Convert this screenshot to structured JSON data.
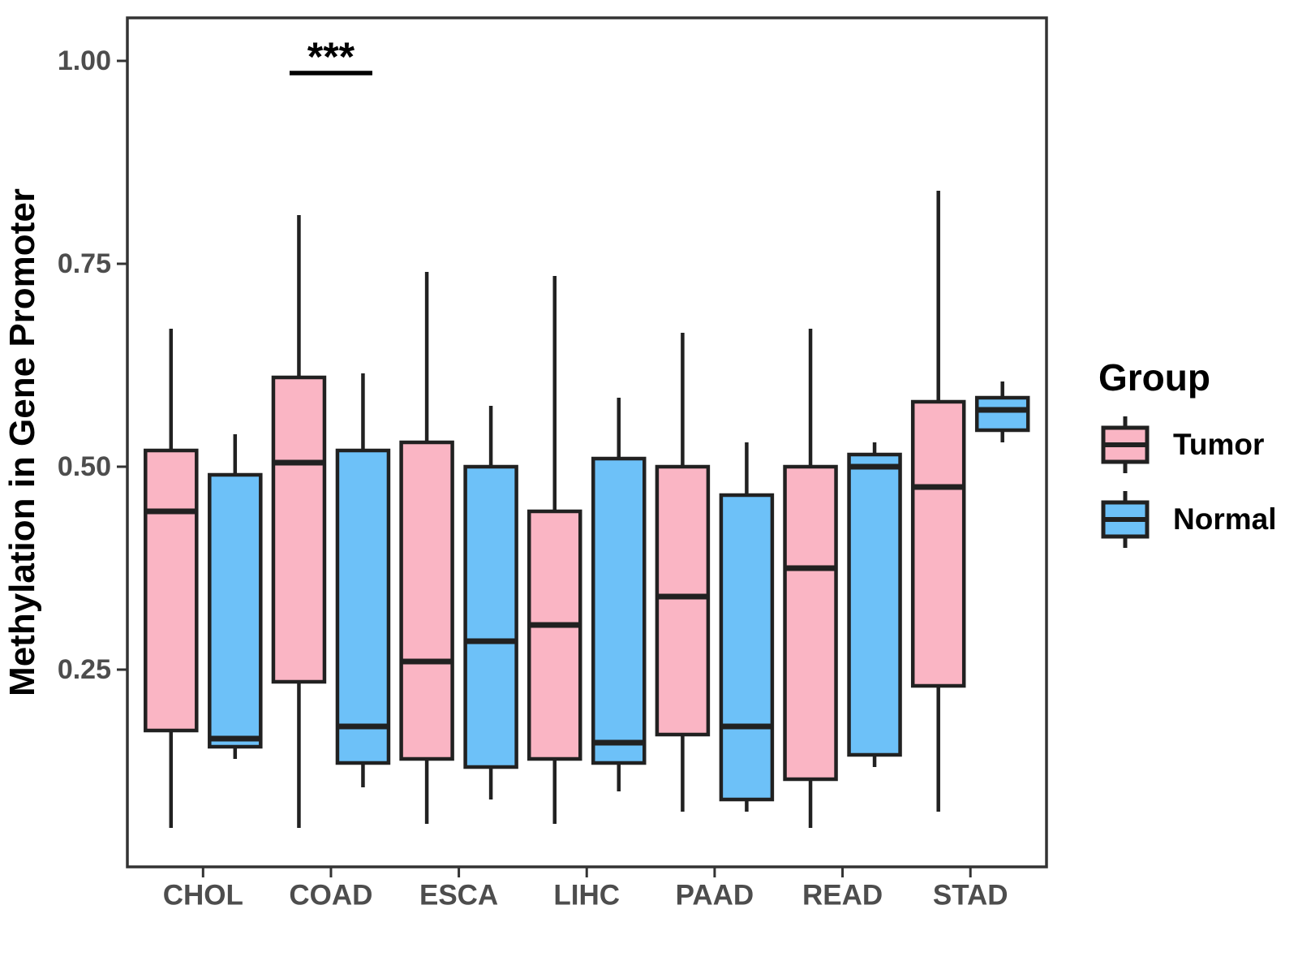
{
  "chart_data": {
    "type": "boxplot",
    "title": "",
    "xlabel": "",
    "ylabel": "Methylation in Gene Promoter",
    "categories": [
      "CHOL",
      "COAD",
      "ESCA",
      "LIHC",
      "PAAD",
      "READ",
      "STAD"
    ],
    "yticks": [
      1.0,
      0.75,
      0.5,
      0.25
    ],
    "ytick_labels": [
      "1.00",
      "0.75",
      "0.50",
      "0.25"
    ],
    "ylim": [
      0.0,
      1.05
    ],
    "grid": false,
    "legend": {
      "title": "Group",
      "position": "right",
      "entries": [
        {
          "label": "Tumor",
          "color": "#FAB5C4"
        },
        {
          "label": "Normal",
          "color": "#6DC1F8"
        }
      ]
    },
    "series": [
      {
        "name": "Tumor",
        "color": "#FAB5C4",
        "boxes": [
          {
            "category": "CHOL",
            "min": 0.055,
            "q1": 0.175,
            "median": 0.445,
            "q3": 0.52,
            "max": 0.67
          },
          {
            "category": "COAD",
            "min": 0.055,
            "q1": 0.235,
            "median": 0.505,
            "q3": 0.61,
            "max": 0.81
          },
          {
            "category": "ESCA",
            "min": 0.06,
            "q1": 0.14,
            "median": 0.26,
            "q3": 0.53,
            "max": 0.74
          },
          {
            "category": "LIHC",
            "min": 0.06,
            "q1": 0.14,
            "median": 0.305,
            "q3": 0.445,
            "max": 0.735
          },
          {
            "category": "PAAD",
            "min": 0.075,
            "q1": 0.17,
            "median": 0.34,
            "q3": 0.5,
            "max": 0.665
          },
          {
            "category": "READ",
            "min": 0.055,
            "q1": 0.115,
            "median": 0.375,
            "q3": 0.5,
            "max": 0.67
          },
          {
            "category": "STAD",
            "min": 0.075,
            "q1": 0.23,
            "median": 0.475,
            "q3": 0.58,
            "max": 0.84
          }
        ]
      },
      {
        "name": "Normal",
        "color": "#6DC1F8",
        "boxes": [
          {
            "category": "CHOL",
            "min": 0.14,
            "q1": 0.155,
            "median": 0.165,
            "q3": 0.49,
            "max": 0.54
          },
          {
            "category": "COAD",
            "min": 0.105,
            "q1": 0.135,
            "median": 0.18,
            "q3": 0.52,
            "max": 0.615
          },
          {
            "category": "ESCA",
            "min": 0.09,
            "q1": 0.13,
            "median": 0.285,
            "q3": 0.5,
            "max": 0.575
          },
          {
            "category": "LIHC",
            "min": 0.1,
            "q1": 0.135,
            "median": 0.16,
            "q3": 0.51,
            "max": 0.585
          },
          {
            "category": "PAAD",
            "min": 0.075,
            "q1": 0.09,
            "median": 0.18,
            "q3": 0.465,
            "max": 0.53
          },
          {
            "category": "READ",
            "min": 0.13,
            "q1": 0.145,
            "median": 0.5,
            "q3": 0.515,
            "max": 0.53
          },
          {
            "category": "STAD",
            "min": 0.53,
            "q1": 0.545,
            "median": 0.57,
            "q3": 0.585,
            "max": 0.605
          }
        ]
      }
    ],
    "annotations": [
      {
        "type": "significance",
        "category": "COAD",
        "label": "***",
        "y": 0.985
      }
    ],
    "colors": {
      "box_stroke": "#212121",
      "median": "#212121",
      "whisker": "#212121",
      "plot_border": "#333333",
      "axis_tick": "#333333",
      "axis_text": "#4d4d4d",
      "axis_title": "#000000",
      "annotation": "#000000",
      "background": "#ffffff"
    }
  }
}
